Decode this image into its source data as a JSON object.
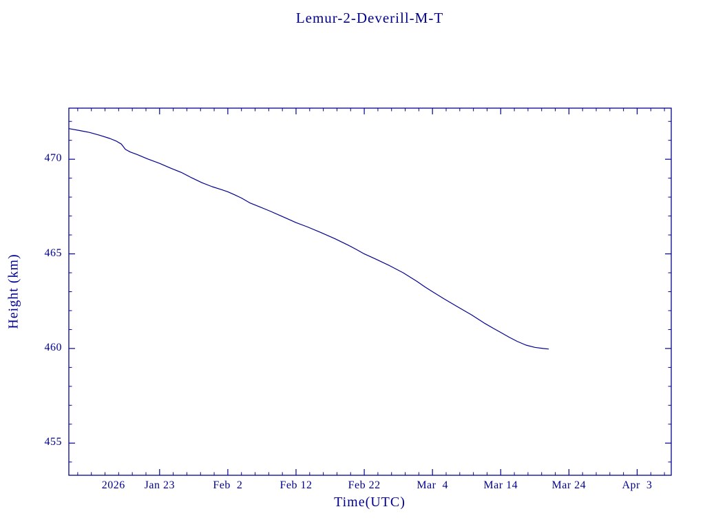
{
  "page": {
    "background": "#ffffff",
    "accent": "#000090"
  },
  "chart_data": {
    "type": "line",
    "title": "Lemur-2-Deverill-M-T",
    "xlabel": "Time(UTC)",
    "ylabel": "Height (km)",
    "x_unit": "days since left edge (left edge ~ 2026 Jan 10)",
    "xlim": [
      0,
      88.3
    ],
    "ylim": [
      453.3,
      472.7
    ],
    "grid": false,
    "legend": "none",
    "line_color": "#000090",
    "year_label": "2026",
    "x_ticks": [
      {
        "v": 13.3,
        "label": "Jan 23"
      },
      {
        "v": 23.3,
        "label": "Feb  2"
      },
      {
        "v": 33.3,
        "label": "Feb 12"
      },
      {
        "v": 43.3,
        "label": "Feb 22"
      },
      {
        "v": 53.3,
        "label": "Mar  4"
      },
      {
        "v": 63.3,
        "label": "Mar 14"
      },
      {
        "v": 73.3,
        "label": "Mar 24"
      },
      {
        "v": 83.3,
        "label": "Apr  3"
      }
    ],
    "y_ticks": [
      455,
      460,
      465,
      470
    ],
    "x_minor_step": 2,
    "y_minor_step": 1,
    "series": [
      {
        "name": "Height (km)",
        "points": [
          [
            0,
            471.62
          ],
          [
            1.5,
            471.52
          ],
          [
            3,
            471.42
          ],
          [
            4.5,
            471.27
          ],
          [
            6,
            471.1
          ],
          [
            7,
            470.95
          ],
          [
            7.7,
            470.8
          ],
          [
            8.3,
            470.52
          ],
          [
            9,
            470.38
          ],
          [
            10,
            470.25
          ],
          [
            11.5,
            470.02
          ],
          [
            13.3,
            469.78
          ],
          [
            15,
            469.52
          ],
          [
            16.5,
            469.3
          ],
          [
            18,
            469.02
          ],
          [
            19.5,
            468.76
          ],
          [
            21,
            468.55
          ],
          [
            22.3,
            468.4
          ],
          [
            23.3,
            468.28
          ],
          [
            24.3,
            468.12
          ],
          [
            25.3,
            467.95
          ],
          [
            26.5,
            467.7
          ],
          [
            28,
            467.48
          ],
          [
            29.5,
            467.26
          ],
          [
            31,
            467.02
          ],
          [
            32.2,
            466.83
          ],
          [
            33.3,
            466.65
          ],
          [
            35,
            466.42
          ],
          [
            37,
            466.12
          ],
          [
            39,
            465.8
          ],
          [
            41,
            465.45
          ],
          [
            42.2,
            465.22
          ],
          [
            43.3,
            465.0
          ],
          [
            45,
            464.72
          ],
          [
            47,
            464.38
          ],
          [
            49,
            464.0
          ],
          [
            51,
            463.55
          ],
          [
            52.2,
            463.25
          ],
          [
            53.3,
            463.0
          ],
          [
            55,
            462.62
          ],
          [
            57,
            462.2
          ],
          [
            59,
            461.78
          ],
          [
            61,
            461.32
          ],
          [
            62.3,
            461.05
          ],
          [
            63.3,
            460.85
          ],
          [
            64.5,
            460.6
          ],
          [
            65.7,
            460.38
          ],
          [
            67,
            460.18
          ],
          [
            68.3,
            460.06
          ],
          [
            69.5,
            460.0
          ],
          [
            70.3,
            459.97
          ]
        ]
      }
    ]
  }
}
